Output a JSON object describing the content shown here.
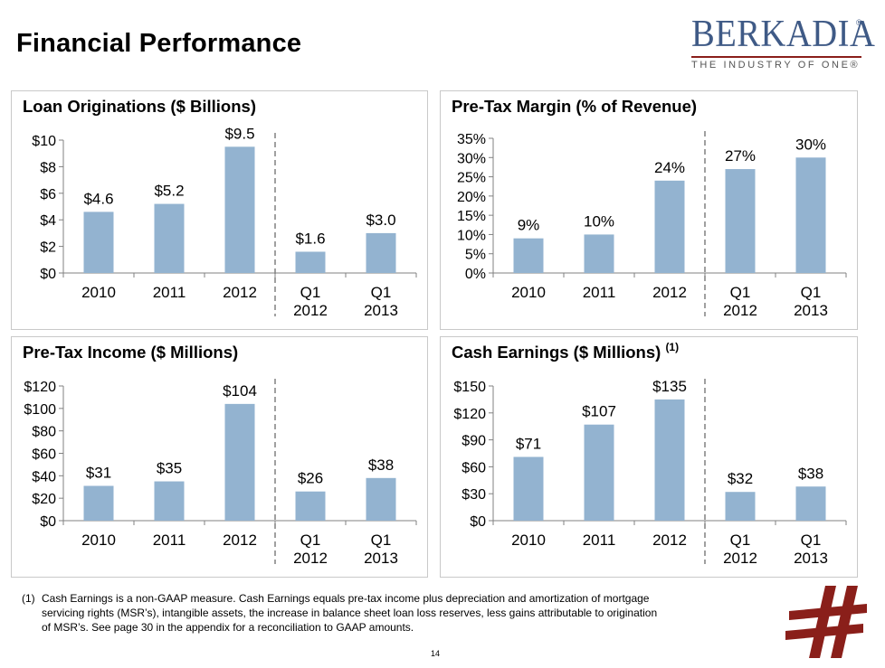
{
  "page": {
    "title": "Financial Performance",
    "page_number": "14"
  },
  "logo": {
    "word": "BERKADIA",
    "registered": "®",
    "tagline": "THE INDUSTRY OF ONE®"
  },
  "footnote": {
    "marker": "(1)",
    "text": "Cash Earnings is a non-GAAP measure. Cash Earnings equals pre-tax income plus depreciation and amortization of mortgage servicing rights (MSR’s), intangible assets, the increase in balance sheet loan loss reserves, less gains attributable to origination of MSR’s. See page 30 in the appendix for a reconciliation to GAAP amounts."
  },
  "colors": {
    "bar": "#93b3d0",
    "panel_border": "#c9c9c9",
    "logo_blue": "#3f5a86",
    "logo_red": "#8a1f1a"
  },
  "chart_data": [
    {
      "id": "loan",
      "type": "bar",
      "title": "Loan Originations ($ Billions)",
      "footnote_ref": "",
      "categories": [
        [
          "2010"
        ],
        [
          "2011"
        ],
        [
          "2012"
        ],
        [
          "Q1",
          "2012"
        ],
        [
          "Q1",
          "2013"
        ]
      ],
      "values": [
        4.6,
        5.2,
        9.5,
        1.6,
        3.0
      ],
      "data_labels": [
        "$4.6",
        "$5.2",
        "$9.5",
        "$1.6",
        "$3.0"
      ],
      "yticks": [
        0,
        2,
        4,
        6,
        8,
        10
      ],
      "ytick_labels": [
        "$0",
        "$2",
        "$4",
        "$6",
        "$8",
        "$10"
      ],
      "ylim": [
        0,
        10
      ],
      "divider_after_index": 2
    },
    {
      "id": "margin",
      "type": "bar",
      "title": "Pre-Tax Margin (% of Revenue)",
      "footnote_ref": "",
      "categories": [
        [
          "2010"
        ],
        [
          "2011"
        ],
        [
          "2012"
        ],
        [
          "Q1",
          "2012"
        ],
        [
          "Q1",
          "2013"
        ]
      ],
      "values": [
        9,
        10,
        24,
        27,
        30
      ],
      "data_labels": [
        "9%",
        "10%",
        "24%",
        "27%",
        "30%"
      ],
      "yticks": [
        0,
        5,
        10,
        15,
        20,
        25,
        30,
        35
      ],
      "ytick_labels": [
        "0%",
        "5%",
        "10%",
        "15%",
        "20%",
        "25%",
        "30%",
        "35%"
      ],
      "ylim": [
        0,
        35
      ],
      "divider_after_index": 2
    },
    {
      "id": "income",
      "type": "bar",
      "title": "Pre-Tax Income ($ Millions)",
      "footnote_ref": "",
      "categories": [
        [
          "2010"
        ],
        [
          "2011"
        ],
        [
          "2012"
        ],
        [
          "Q1",
          "2012"
        ],
        [
          "Q1",
          "2013"
        ]
      ],
      "values": [
        31,
        35,
        104,
        26,
        38
      ],
      "data_labels": [
        "$31",
        "$35",
        "$104",
        "$26",
        "$38"
      ],
      "yticks": [
        0,
        20,
        40,
        60,
        80,
        100,
        120
      ],
      "ytick_labels": [
        "$0",
        "$20",
        "$40",
        "$60",
        "$80",
        "$100",
        "$120"
      ],
      "ylim": [
        0,
        120
      ],
      "divider_after_index": 2
    },
    {
      "id": "cash",
      "type": "bar",
      "title": "Cash Earnings ($ Millions)",
      "footnote_ref": "(1)",
      "categories": [
        [
          "2010"
        ],
        [
          "2011"
        ],
        [
          "2012"
        ],
        [
          "Q1",
          "2012"
        ],
        [
          "Q1",
          "2013"
        ]
      ],
      "values": [
        71,
        107,
        135,
        32,
        38
      ],
      "data_labels": [
        "$71",
        "$107",
        "$135",
        "$32",
        "$38"
      ],
      "yticks": [
        0,
        30,
        60,
        90,
        120,
        150
      ],
      "ytick_labels": [
        "$0",
        "$30",
        "$60",
        "$90",
        "$120",
        "$150"
      ],
      "ylim": [
        0,
        150
      ],
      "divider_after_index": 2
    }
  ]
}
